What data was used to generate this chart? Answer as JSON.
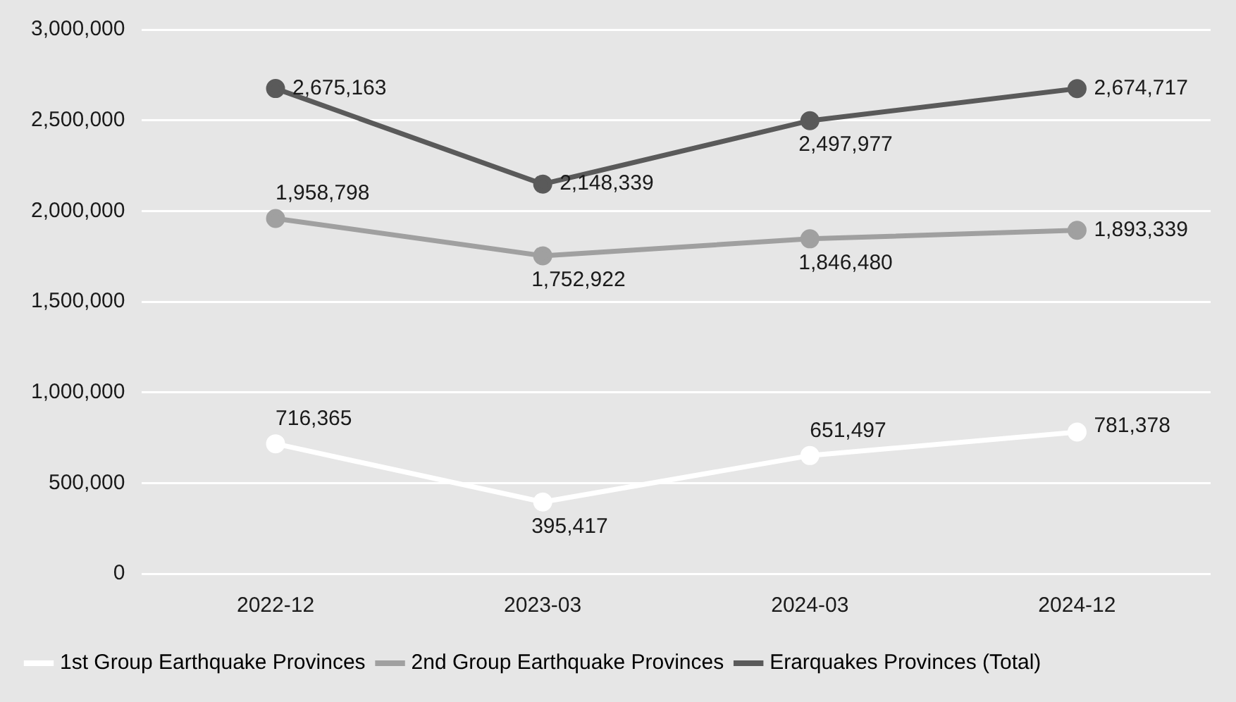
{
  "chart_data": {
    "type": "line",
    "categories": [
      "2022-12",
      "2023-03",
      "2024-03",
      "2024-12"
    ],
    "series": [
      {
        "name": "1st Group Earthquake Provinces",
        "color": "#ffffff",
        "values": [
          716365,
          395417,
          651497,
          781378
        ],
        "value_labels": [
          "716,365",
          "395,417",
          "651,497",
          "781,378"
        ]
      },
      {
        "name": "2nd Group Earthquake Provinces",
        "color": "#a0a0a0",
        "values": [
          1958798,
          1752922,
          1846480,
          1893339
        ],
        "value_labels": [
          "1,958,798",
          "1,752,922",
          "1,846,480",
          "1,893,339"
        ]
      },
      {
        "name": "Erarquakes Provinces (Total)",
        "color": "#5a5a5a",
        "values": [
          2675163,
          2148339,
          2497977,
          2674717
        ],
        "value_labels": [
          "2,675,163",
          "2,148,339",
          "2,497,977",
          "2,674,717"
        ]
      }
    ],
    "ylim": [
      0,
      3000000
    ],
    "yticks": [
      0,
      {
        "value": 500000,
        "label": "500,000"
      },
      {
        "value": 1000000,
        "label": "1,000,000"
      },
      {
        "value": 1500000,
        "label": "1,500,000"
      },
      {
        "value": 2000000,
        "label": "2,000,000"
      },
      {
        "value": 2500000,
        "label": "2,500,000"
      },
      {
        "value": 3000000,
        "label": "3,000,000"
      }
    ],
    "grid": "y",
    "legend": "bottom",
    "marker": "circle",
    "line_style": "solid"
  }
}
